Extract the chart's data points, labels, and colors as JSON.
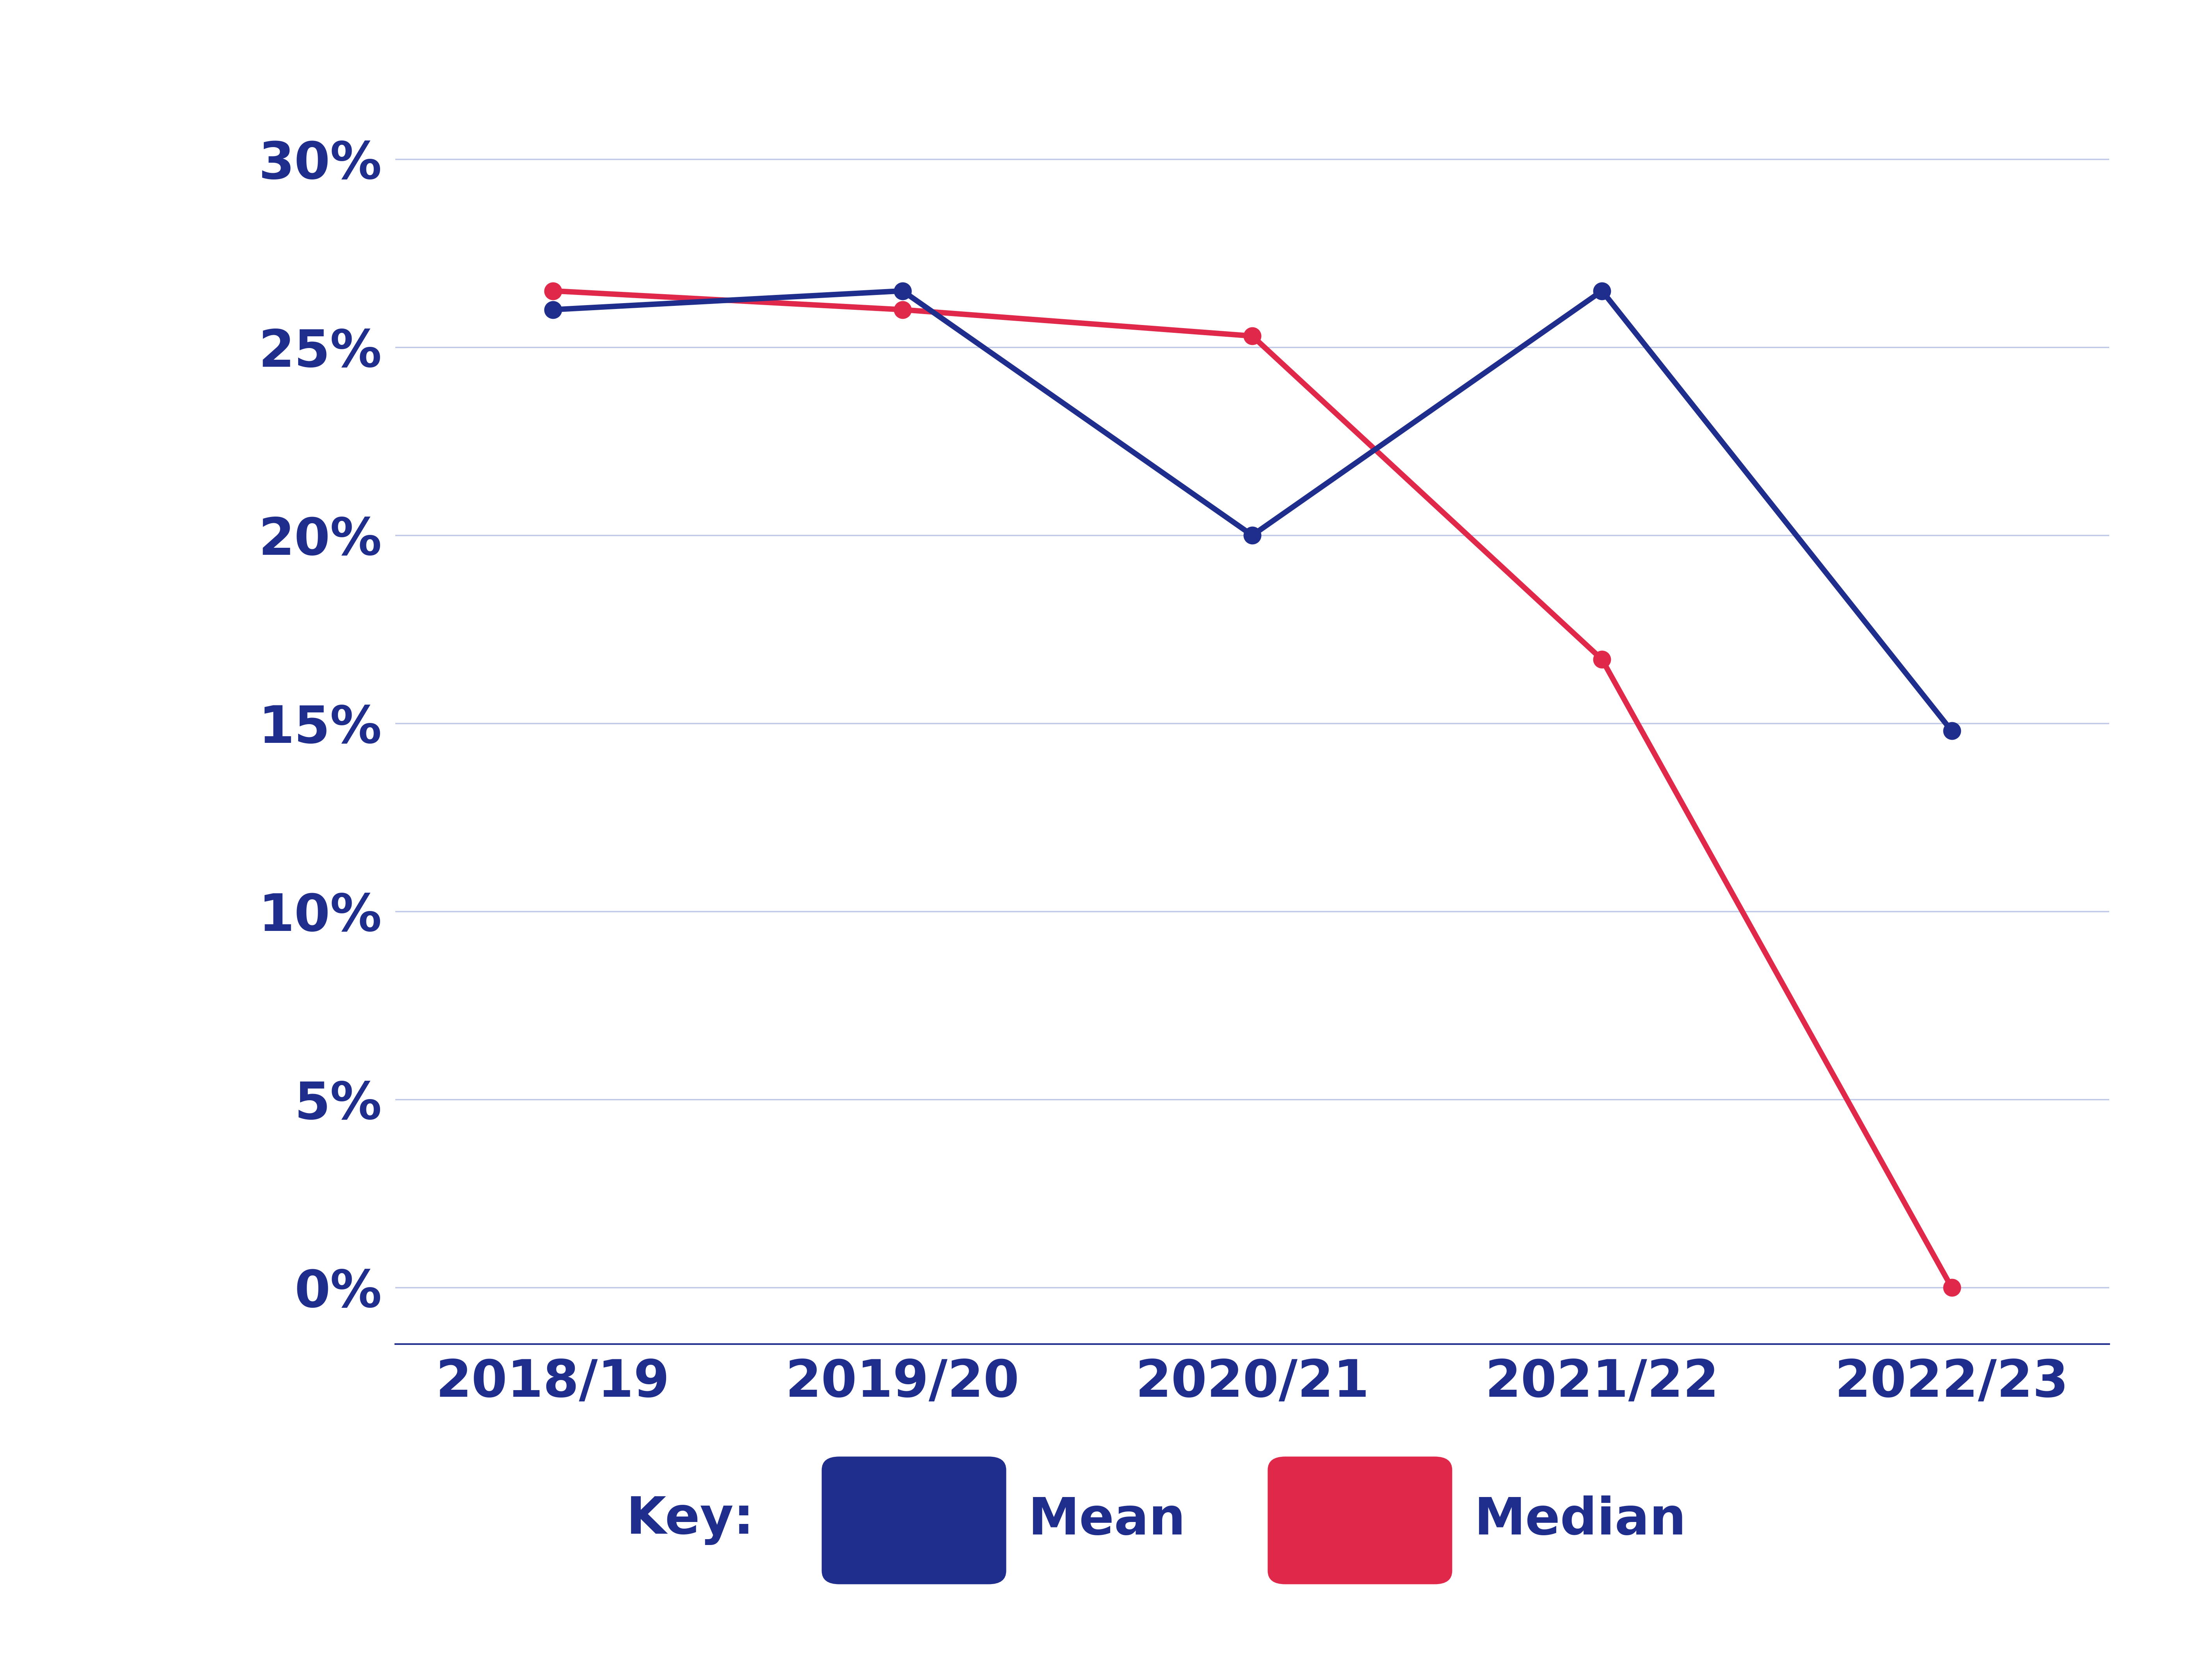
{
  "x_labels": [
    "2018/19",
    "2019/20",
    "2020/21",
    "2021/22",
    "2022/23"
  ],
  "mean_values": [
    26.0,
    26.5,
    20.0,
    26.5,
    14.8
  ],
  "median_values": [
    26.5,
    26.0,
    25.3,
    16.7,
    0.0
  ],
  "mean_color": "#1f2d8c",
  "median_color": "#e0294a",
  "grid_color": "#c0c8e8",
  "text_color": "#1f2d8c",
  "yticks": [
    0,
    5,
    10,
    15,
    20,
    25,
    30
  ],
  "ylim": [
    -1.5,
    32
  ],
  "background_color": "#ffffff",
  "mean_label": "Mean",
  "median_label": "Median",
  "key_label": "Key:",
  "tick_label_fontsize": 95,
  "legend_fontsize": 95,
  "line_width": 10,
  "marker_size": 32
}
